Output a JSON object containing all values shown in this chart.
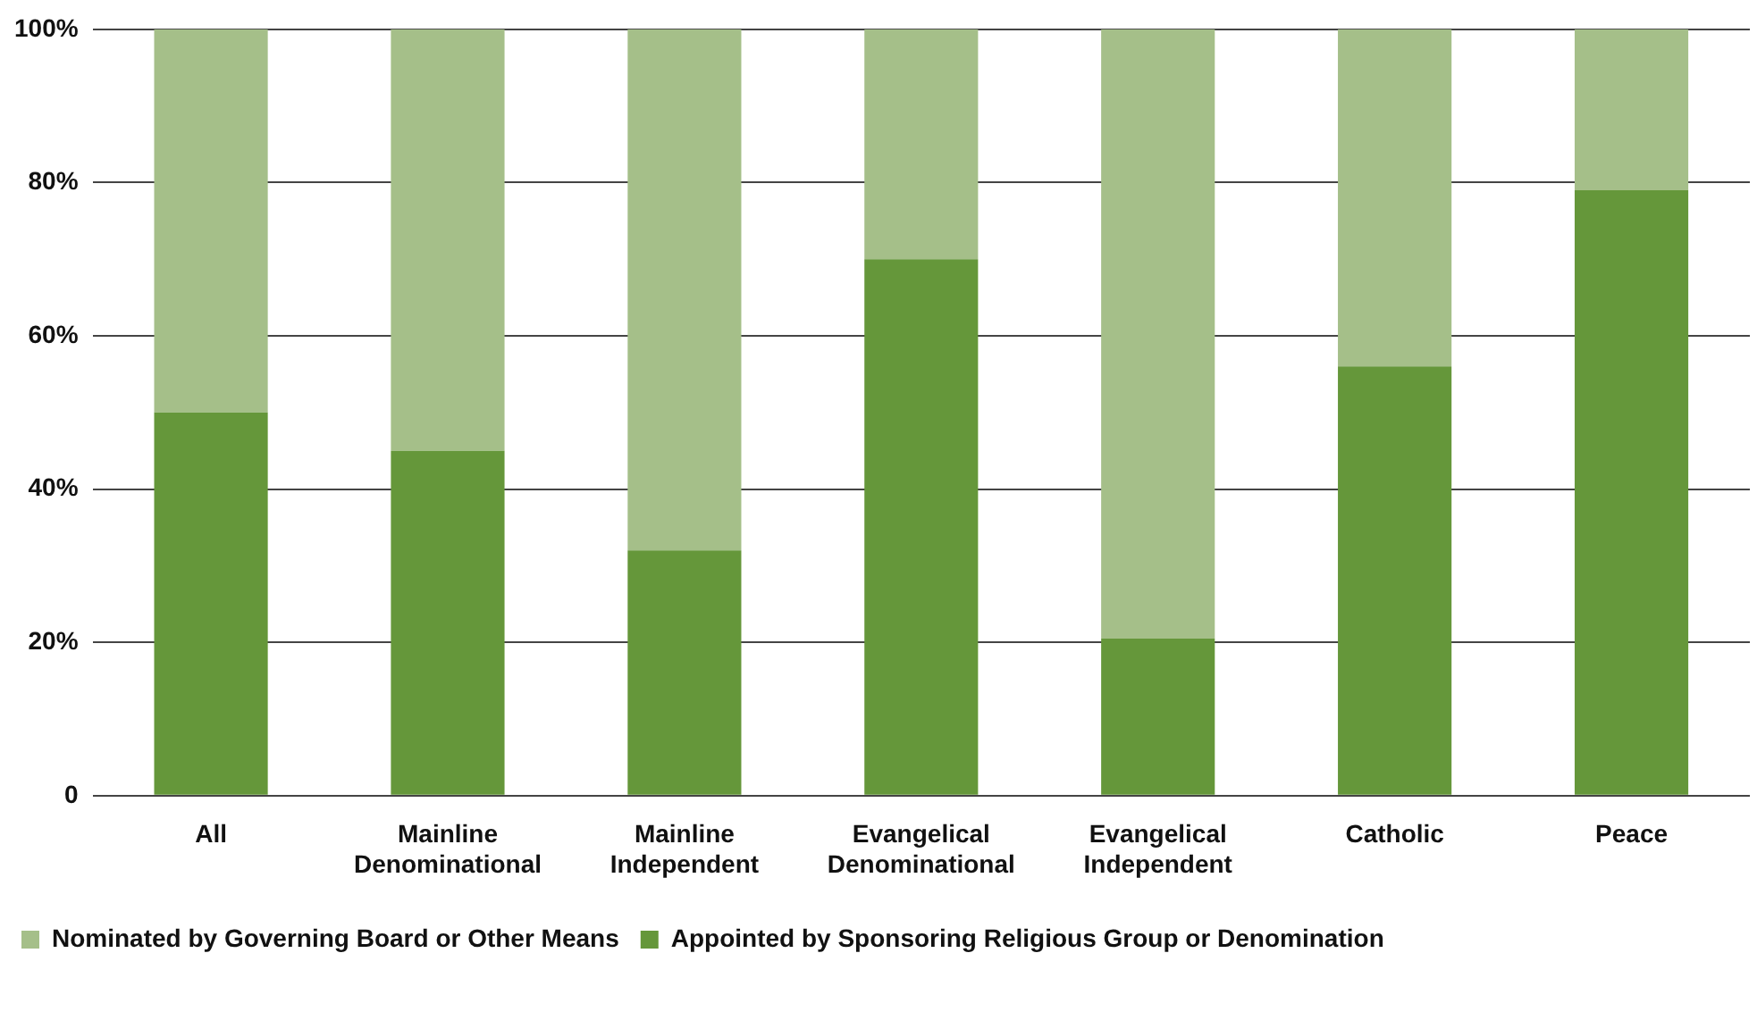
{
  "chart_data": {
    "type": "bar",
    "stacked": true,
    "categories": [
      "All",
      "Mainline Denominational",
      "Mainline Independent",
      "Evangelical Denominational",
      "Evangelical Independent",
      "Catholic",
      "Peace"
    ],
    "series": [
      {
        "name": "Appointed by Sponsoring Religious Group or Denomination",
        "color": "#65973a",
        "values": [
          50,
          45,
          32,
          70,
          20.5,
          56,
          79
        ]
      },
      {
        "name": "Nominated by Governing Board or Other Means",
        "color": "#a5bf89",
        "values": [
          50,
          55,
          68,
          30,
          79.5,
          44,
          21
        ]
      }
    ],
    "ylim": [
      0,
      100
    ],
    "yticks": [
      {
        "value": 0,
        "label": "0"
      },
      {
        "value": 20,
        "label": "20%"
      },
      {
        "value": 40,
        "label": "40%"
      },
      {
        "value": 60,
        "label": "60%"
      },
      {
        "value": 80,
        "label": "80%"
      },
      {
        "value": 100,
        "label": "100%"
      }
    ],
    "grid": "y",
    "legend": "bottom left"
  }
}
